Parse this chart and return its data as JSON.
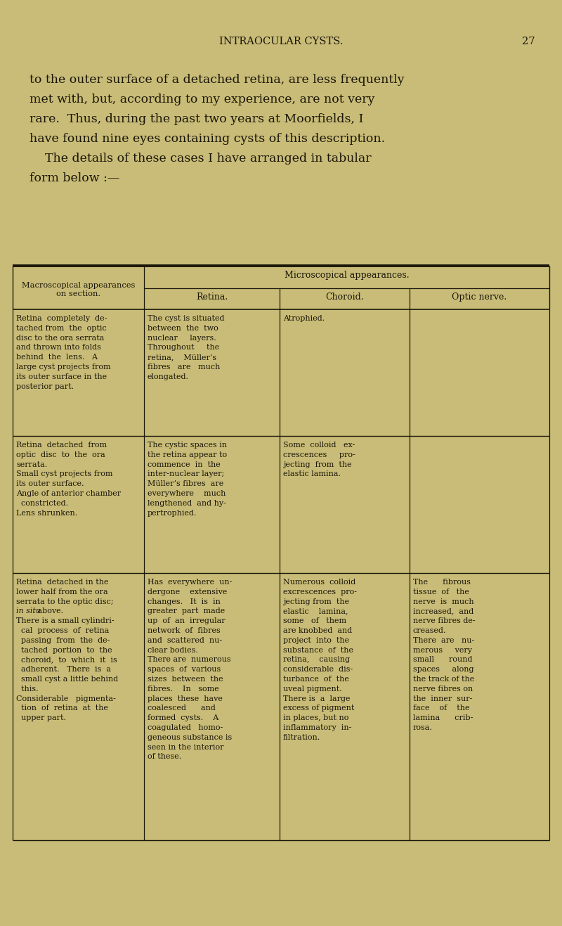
{
  "bg_color": "#c9bc78",
  "text_color": "#1a1608",
  "header_title": "INTRAOCULAR CYSTS.",
  "header_page": "27",
  "intro_lines": [
    "to the outer surface of a detached retina, are less frequently",
    "met with, but, according to my experience, are not very",
    "rare.  Thus, during the past two years at Moorfields, I",
    "have found nine eyes containing cysts of this description.",
    "    The details of these cases I have arranged in tabular",
    "form below :—"
  ],
  "microscopical_header": "Microscopical appearances.",
  "col0_header_line1": "Macroscopical appearances",
  "col0_header_line2": "on section.",
  "subcol_headers": [
    "Retina.",
    "Choroid.",
    "Optic nerve."
  ],
  "rows": [
    {
      "col0": [
        "Retina  completely  de-",
        "tached from  the  optic",
        "disc to the ora serrata",
        "and thrown into folds",
        "behind  the  lens.   A",
        "large cyst projects from",
        "its outer surface in the",
        "posterior part."
      ],
      "col1": [
        "The cyst is situated",
        "between  the  two",
        "nuclear     layers.",
        "Throughout     the",
        "retina,    Müller’s",
        "fibres   are   much",
        "elongated."
      ],
      "col2": [
        "Atrophied."
      ],
      "col3": []
    },
    {
      "col0": [
        "Retina  detached  from",
        "optic  disc  to  the  ora",
        "serrata.",
        "Small cyst projects from",
        "its outer surface.",
        "Angle of anterior chamber",
        "  constricted.",
        "Lens shrunken."
      ],
      "col1": [
        "The cystic spaces in",
        "the retina appear to",
        "commence  in  the",
        "inter-nuclear layer;",
        "Müller’s fibres  are",
        "everywhere    much",
        "lengthened  and hy-",
        "pertrophied."
      ],
      "col2": [
        "Some  colloid   ex-",
        "crescences     pro-",
        "jecting  from  the",
        "elastic lamina."
      ],
      "col3": []
    },
    {
      "col0": [
        "Retina  detached in the",
        "lower half from the ora",
        "serrata to the optic disc;",
        "in situ above.",
        "There is a small cylindri-",
        "  cal  process  of  retina",
        "  passing  from  the  de-",
        "  tached  portion  to  the",
        "  choroid,  to  which  it  is",
        "  adherent.   There  is  a",
        "  small cyst a little behind",
        "  this.",
        "Considerable   pigmenta-",
        "  tion  of  retina  at  the",
        "  upper part."
      ],
      "col1": [
        "Has  everywhere  un-",
        "dergone    extensive",
        "changes.   It  is  in",
        "greater  part  made",
        "up  of  an  irregular",
        "network  of  fibres",
        "and  scattered  nu-",
        "clear bodies.",
        "There are  numerous",
        "spaces  of  various",
        "sizes  between  the",
        "fibres.    In   some",
        "places  these  have",
        "coalesced      and",
        "formed  cysts.    A",
        "coagulated   homo-",
        "geneous substance is",
        "seen in the interior",
        "of these."
      ],
      "col2": [
        "Numerous  colloid",
        "excrescences  pro-",
        "jecting from  the",
        "elastic    lamina,",
        "some   of   them",
        "are knobbed  and",
        "project  into  the",
        "substance  of  the",
        "retina,    causing",
        "considerable  dis-",
        "turbance  of  the",
        "uveal pigment.",
        "There is  a  large",
        "excess of pigment",
        "in places, but no",
        "inflammatory  in-",
        "filtration."
      ],
      "col3": [
        "The      fibrous",
        "tissue  of   the",
        "nerve  is  much",
        "increased,  and",
        "nerve fibres de-",
        "creased.",
        "There  are   nu-",
        "merous     very",
        "small      round",
        "spaces     along",
        "the track of the",
        "nerve fibres on",
        "the  inner  sur-",
        "face    of    the",
        "lamina      crib-",
        "rosa."
      ]
    }
  ],
  "in_situ_row": 2,
  "in_situ_line": 3
}
